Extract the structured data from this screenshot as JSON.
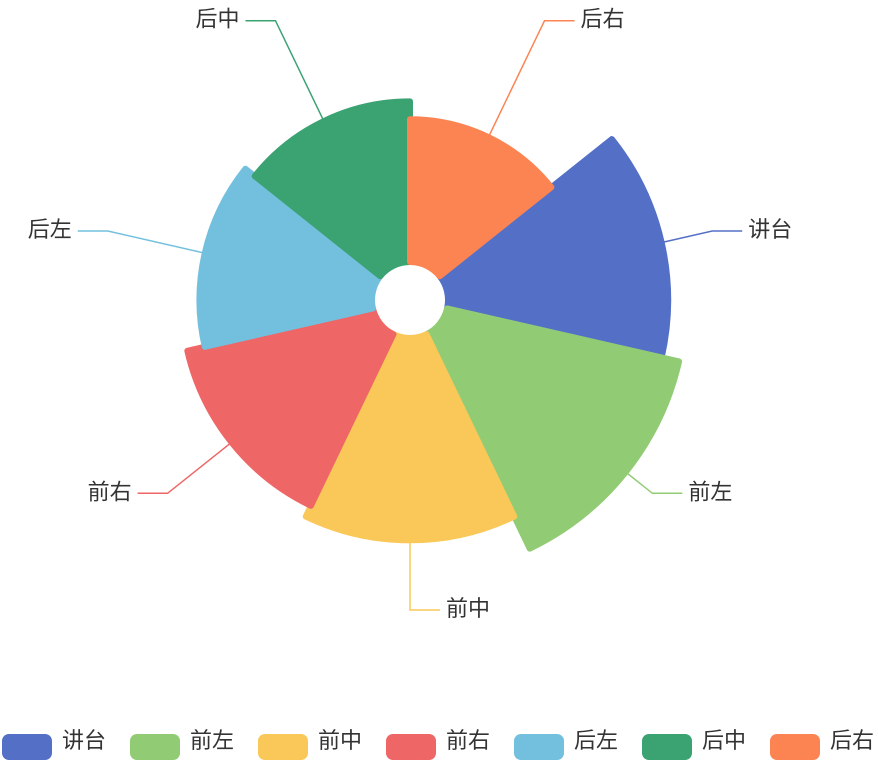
{
  "chart_data": {
    "type": "pie",
    "rose": true,
    "categories": [
      "讲台",
      "前左",
      "前中",
      "前右",
      "后左",
      "后中",
      "后右"
    ],
    "values": [
      37,
      40,
      34,
      32,
      29,
      27,
      24
    ],
    "colors": [
      "#5470c6",
      "#91cc75",
      "#fac858",
      "#ee6666",
      "#73c0de",
      "#3ba272",
      "#fc8452"
    ],
    "legend": "bottom"
  }
}
